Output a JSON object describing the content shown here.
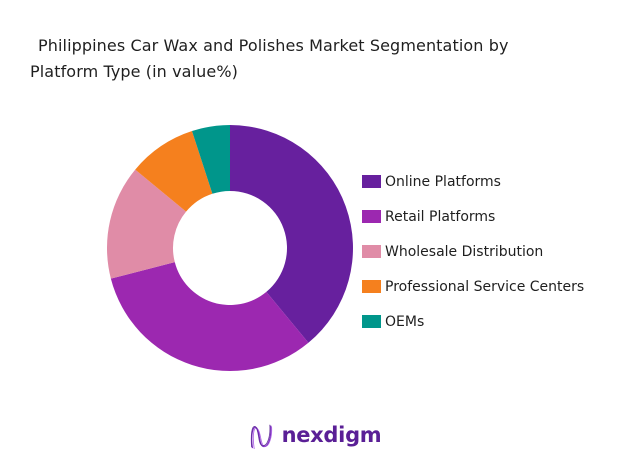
{
  "header": {
    "title_line1": "Philippines Car Wax and Polishes Market Segmentation by",
    "title_line2": "Platform Type (in value%)"
  },
  "chart_data": {
    "type": "pie",
    "subtype": "donut",
    "title": "Philippines Car Wax and Polishes Market Segmentation by Platform Type (in value%)",
    "unit": "value %",
    "start_angle_deg": 0,
    "direction": "clockwise",
    "inner_radius_ratio": 0.465,
    "legend_position": "right",
    "categories": [
      "Online Platforms",
      "Retail Platforms",
      "Wholesale Distribution",
      "Professional Service Centers",
      "OEMs"
    ],
    "values": [
      39,
      32,
      15,
      9,
      5
    ],
    "colors": [
      "#67209e",
      "#9c28b0",
      "#e08ca7",
      "#f5801e",
      "#00968b"
    ]
  },
  "footer": {
    "brand": "nexdigm",
    "brand_color": "#5a1f96"
  }
}
